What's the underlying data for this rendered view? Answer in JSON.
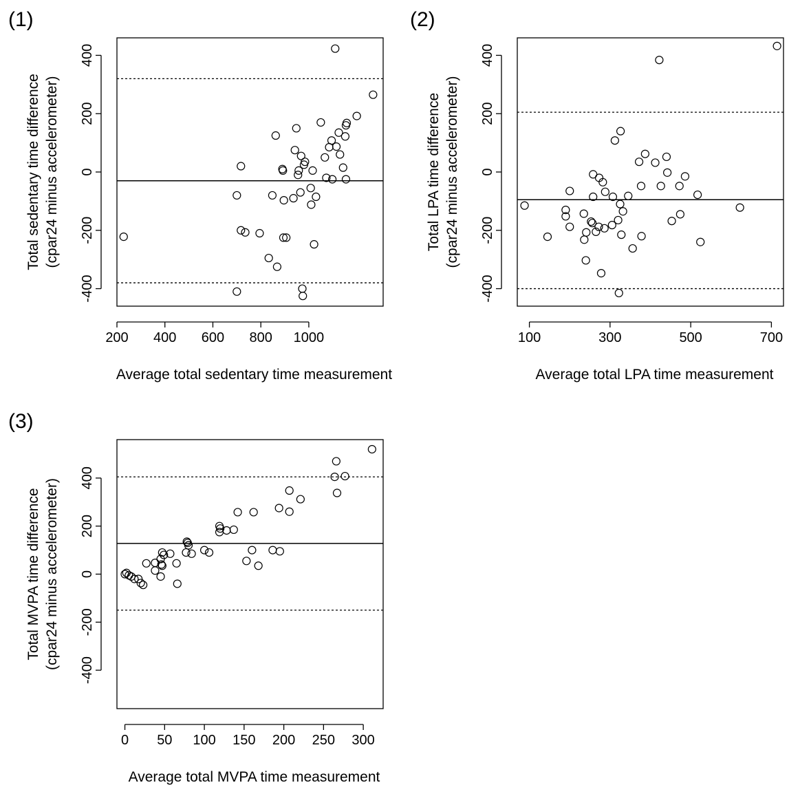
{
  "chart_data": [
    {
      "type": "scatter",
      "panel_label": "(1)",
      "xlabel": "Average total sedentary time measurement",
      "ylabel": [
        "Total sedentary time difference",
        "(cpar24 minus accelerometer)"
      ],
      "xticks": [
        200,
        400,
        600,
        800,
        1000
      ],
      "yticks": [
        -400,
        -200,
        0,
        200,
        400
      ],
      "xlim": [
        200,
        1310
      ],
      "ylim": [
        -460,
        460
      ],
      "mean_line": -30,
      "limits_of_agreement": [
        -380,
        320
      ],
      "points": [
        [
          228,
          -222
        ],
        [
          700,
          -80
        ],
        [
          700,
          -410
        ],
        [
          717,
          20
        ],
        [
          717,
          -200
        ],
        [
          735,
          -207
        ],
        [
          795,
          -210
        ],
        [
          833,
          -295
        ],
        [
          848,
          -80
        ],
        [
          862,
          125
        ],
        [
          868,
          -325
        ],
        [
          890,
          10
        ],
        [
          892,
          5
        ],
        [
          894,
          -225
        ],
        [
          896,
          -97
        ],
        [
          906,
          -225
        ],
        [
          936,
          -90
        ],
        [
          942,
          75
        ],
        [
          948,
          150
        ],
        [
          955,
          -10
        ],
        [
          958,
          5
        ],
        [
          965,
          -70
        ],
        [
          968,
          55
        ],
        [
          973,
          -400
        ],
        [
          975,
          -425
        ],
        [
          980,
          25
        ],
        [
          984,
          35
        ],
        [
          1008,
          -55
        ],
        [
          1010,
          -112
        ],
        [
          1016,
          5
        ],
        [
          1022,
          -248
        ],
        [
          1030,
          -85
        ],
        [
          1050,
          170
        ],
        [
          1067,
          50
        ],
        [
          1073,
          -20
        ],
        [
          1085,
          85
        ],
        [
          1095,
          108
        ],
        [
          1098,
          -25
        ],
        [
          1115,
          87
        ],
        [
          1125,
          135
        ],
        [
          1130,
          60
        ],
        [
          1143,
          15
        ],
        [
          1152,
          122
        ],
        [
          1155,
          160
        ],
        [
          1158,
          168
        ],
        [
          1155,
          -25
        ],
        [
          1200,
          192
        ],
        [
          1268,
          265
        ],
        [
          1110,
          423
        ]
      ]
    },
    {
      "type": "scatter",
      "panel_label": "(2)",
      "xlabel": "Average total LPA time measurement",
      "ylabel": [
        "Total LPA time difference",
        "(cpar24 minus accelerometer)"
      ],
      "xticks": [
        100,
        300,
        500,
        700
      ],
      "yticks": [
        -400,
        -200,
        0,
        200,
        400
      ],
      "xlim": [
        70,
        730
      ],
      "ylim": [
        -460,
        460
      ],
      "mean_line": -95,
      "limits_of_agreement": [
        -400,
        205
      ],
      "points": [
        [
          88,
          -115
        ],
        [
          145,
          -222
        ],
        [
          190,
          -130
        ],
        [
          190,
          -152
        ],
        [
          200,
          -188
        ],
        [
          200,
          -65
        ],
        [
          235,
          -143
        ],
        [
          236,
          -232
        ],
        [
          240,
          -303
        ],
        [
          241,
          -207
        ],
        [
          253,
          -170
        ],
        [
          256,
          -175
        ],
        [
          258,
          -85
        ],
        [
          258,
          -8
        ],
        [
          265,
          -205
        ],
        [
          272,
          -188
        ],
        [
          273,
          -20
        ],
        [
          278,
          -347
        ],
        [
          282,
          -35
        ],
        [
          286,
          -193
        ],
        [
          288,
          -68
        ],
        [
          305,
          -182
        ],
        [
          307,
          -85
        ],
        [
          312,
          108
        ],
        [
          320,
          -165
        ],
        [
          322,
          -415
        ],
        [
          325,
          -110
        ],
        [
          326,
          140
        ],
        [
          328,
          -215
        ],
        [
          332,
          -135
        ],
        [
          345,
          -82
        ],
        [
          356,
          -262
        ],
        [
          372,
          35
        ],
        [
          377,
          -48
        ],
        [
          378,
          -220
        ],
        [
          387,
          62
        ],
        [
          412,
          32
        ],
        [
          422,
          384
        ],
        [
          426,
          -48
        ],
        [
          440,
          52
        ],
        [
          442,
          -2
        ],
        [
          453,
          -168
        ],
        [
          472,
          -48
        ],
        [
          474,
          -145
        ],
        [
          486,
          -15
        ],
        [
          517,
          -78
        ],
        [
          524,
          -240
        ],
        [
          622,
          -122
        ],
        [
          714,
          432
        ]
      ]
    },
    {
      "type": "scatter",
      "panel_label": "(3)",
      "xlabel": "Average total MVPA time measurement",
      "ylabel": [
        "Total MVPA time difference",
        "(cpar24 minus accelerometer)"
      ],
      "xticks": [
        0,
        50,
        100,
        150,
        200,
        250,
        300
      ],
      "yticks": [
        -400,
        -200,
        0,
        200,
        400
      ],
      "xlim": [
        -10,
        325
      ],
      "ylim": [
        -560,
        560
      ],
      "mean_line": 128,
      "limits_of_agreement": [
        -150,
        405
      ],
      "points": [
        [
          0,
          0
        ],
        [
          2,
          5
        ],
        [
          5,
          -5
        ],
        [
          8,
          -10
        ],
        [
          12,
          -20
        ],
        [
          17,
          -20
        ],
        [
          20,
          -37
        ],
        [
          23,
          -45
        ],
        [
          27,
          45
        ],
        [
          38,
          15
        ],
        [
          38,
          47
        ],
        [
          45,
          -10
        ],
        [
          45,
          63
        ],
        [
          46,
          40
        ],
        [
          47,
          35
        ],
        [
          47,
          90
        ],
        [
          49,
          80
        ],
        [
          57,
          85
        ],
        [
          65,
          45
        ],
        [
          66,
          -40
        ],
        [
          77,
          90
        ],
        [
          78,
          135
        ],
        [
          79,
          130
        ],
        [
          80,
          120
        ],
        [
          84,
          85
        ],
        [
          100,
          100
        ],
        [
          106,
          90
        ],
        [
          119,
          200
        ],
        [
          119,
          175
        ],
        [
          120,
          190
        ],
        [
          128,
          182
        ],
        [
          137,
          185
        ],
        [
          142,
          258
        ],
        [
          153,
          55
        ],
        [
          160,
          100
        ],
        [
          162,
          258
        ],
        [
          168,
          35
        ],
        [
          186,
          100
        ],
        [
          194,
          275
        ],
        [
          195,
          95
        ],
        [
          207,
          348
        ],
        [
          207,
          260
        ],
        [
          221,
          312
        ],
        [
          264,
          405
        ],
        [
          266,
          470
        ],
        [
          267,
          338
        ],
        [
          277,
          408
        ],
        [
          311,
          520
        ]
      ]
    }
  ]
}
